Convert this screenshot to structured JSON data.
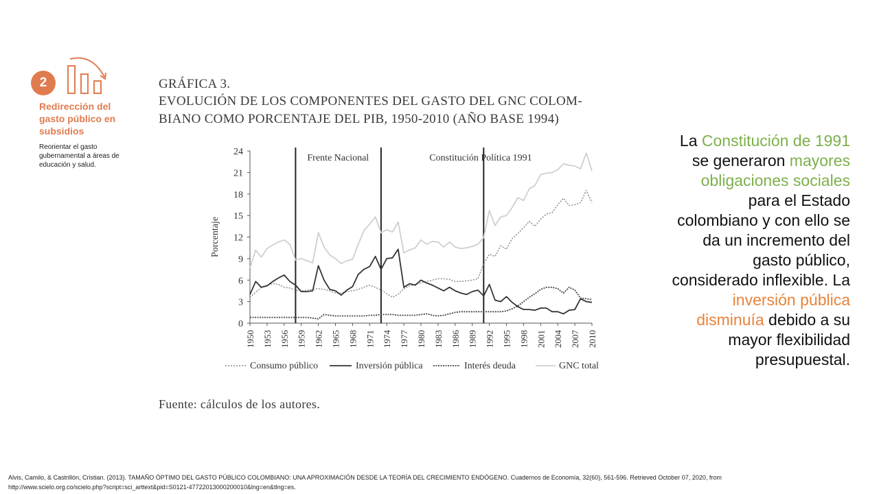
{
  "slide": {
    "badge_number": "2",
    "sidebar_title": "Redirección del gasto público en subsidios",
    "sidebar_desc": "Reorientar el gasto gubernamental a áreas de educación y salud."
  },
  "figure": {
    "label": "GRÁFICA 3.",
    "title_line1": "EVOLUCIÓN DE LOS COMPONENTES DEL GASTO DEL GNC COLOM-",
    "title_line2": "BIANO COMO PORCENTAJE DEL PIB, 1950-2010 (AÑO BASE 1994)",
    "source": "Fuente: cálculos de los autores."
  },
  "chart_data": {
    "type": "line",
    "ylabel": "Porcentaje",
    "xlabel": "",
    "ylim": [
      0,
      24
    ],
    "yticks": [
      "0",
      "3",
      "6",
      "9",
      "12",
      "15",
      "18",
      "21",
      "24"
    ],
    "xticks": [
      "1950",
      "1953",
      "1956",
      "1959",
      "1962",
      "1965",
      "1968",
      "1971",
      "1974",
      "1977",
      "1980",
      "1983",
      "1986",
      "1989",
      "1992",
      "1995",
      "1998",
      "2001",
      "2004",
      "2007",
      "2010"
    ],
    "xlim": [
      1950,
      2010
    ],
    "grid": false,
    "legend_position": "bottom",
    "annotations": [
      {
        "label": "Frente Nacional",
        "x": 1958
      },
      {
        "label": "Constitución Política 1991",
        "x": 1991
      }
    ],
    "vertical_lines": [
      1958,
      1973,
      1991
    ],
    "x": [
      1950,
      1951,
      1952,
      1953,
      1954,
      1955,
      1956,
      1957,
      1958,
      1959,
      1960,
      1961,
      1962,
      1963,
      1964,
      1965,
      1966,
      1967,
      1968,
      1969,
      1970,
      1971,
      1972,
      1973,
      1974,
      1975,
      1976,
      1977,
      1978,
      1979,
      1980,
      1981,
      1982,
      1983,
      1984,
      1985,
      1986,
      1987,
      1988,
      1989,
      1990,
      1991,
      1992,
      1993,
      1994,
      1995,
      1996,
      1997,
      1998,
      1999,
      2000,
      2001,
      2002,
      2003,
      2004,
      2005,
      2006,
      2007,
      2008,
      2009,
      2010
    ],
    "series": [
      {
        "name": "Consumo público",
        "values": [
          3.6,
          4.3,
          5.0,
          5.3,
          5.5,
          5.4,
          5.0,
          4.9,
          4.6,
          4.5,
          4.6,
          4.7,
          4.8,
          4.7,
          4.5,
          4.2,
          4.2,
          4.4,
          4.5,
          4.7,
          5.0,
          5.3,
          5.0,
          4.6,
          4.1,
          3.6,
          4.0,
          4.8,
          5.2,
          5.4,
          5.6,
          5.8,
          6.0,
          6.2,
          6.2,
          6.1,
          5.8,
          5.8,
          5.9,
          6.0,
          6.2,
          8.3,
          9.6,
          9.3,
          10.8,
          10.3,
          11.8,
          12.5,
          13.3,
          14.2,
          13.5,
          14.5,
          15.2,
          15.4,
          16.5,
          17.4,
          16.4,
          16.5,
          16.8,
          18.5,
          16.8
        ]
      },
      {
        "name": "Inversión pública",
        "values": [
          4.0,
          5.8,
          5.0,
          5.2,
          5.8,
          6.3,
          6.7,
          5.8,
          5.3,
          4.4,
          4.4,
          4.5,
          8.0,
          6.0,
          4.7,
          4.5,
          3.9,
          4.6,
          5.1,
          6.8,
          7.5,
          7.9,
          9.3,
          7.5,
          9.0,
          9.1,
          10.3,
          5.0,
          5.5,
          5.3,
          6.0,
          5.6,
          5.3,
          4.9,
          4.5,
          5.0,
          4.5,
          4.2,
          4.0,
          4.4,
          4.6,
          3.8,
          5.4,
          3.2,
          3.0,
          3.7,
          2.9,
          2.3,
          1.9,
          1.9,
          1.8,
          2.1,
          2.1,
          1.6,
          1.6,
          1.3,
          1.8,
          1.9,
          3.4,
          3.0,
          2.9
        ]
      },
      {
        "name": "Interés deuda",
        "values": [
          0.8,
          0.8,
          0.8,
          0.8,
          0.8,
          0.8,
          0.8,
          0.8,
          0.8,
          0.8,
          0.8,
          0.7,
          0.6,
          1.2,
          1.1,
          1.0,
          1.0,
          1.0,
          1.0,
          1.0,
          1.0,
          1.1,
          1.1,
          1.2,
          1.2,
          1.2,
          1.1,
          1.1,
          1.1,
          1.1,
          1.2,
          1.3,
          1.1,
          1.0,
          1.1,
          1.3,
          1.5,
          1.6,
          1.6,
          1.6,
          1.6,
          1.6,
          1.6,
          1.6,
          1.6,
          1.7,
          2.0,
          2.4,
          3.0,
          3.6,
          4.1,
          4.7,
          5.0,
          5.0,
          4.8,
          4.2,
          5.0,
          4.6,
          3.5,
          3.4,
          3.3
        ]
      },
      {
        "name": "GNC total",
        "values": [
          7.7,
          10.2,
          9.2,
          10.4,
          10.9,
          11.3,
          11.6,
          11.0,
          8.8,
          9.0,
          8.7,
          8.4,
          12.6,
          10.6,
          9.5,
          9.0,
          8.3,
          8.7,
          8.9,
          11.0,
          12.9,
          13.8,
          14.8,
          12.6,
          13.0,
          12.7,
          14.1,
          9.8,
          10.2,
          10.5,
          11.6,
          11.0,
          11.4,
          11.3,
          10.6,
          11.3,
          10.6,
          10.4,
          10.5,
          10.7,
          11.0,
          11.9,
          15.7,
          13.6,
          14.8,
          15.0,
          16.1,
          17.5,
          17.1,
          18.7,
          19.2,
          20.7,
          20.9,
          21.0,
          21.4,
          22.2,
          22.0,
          21.9,
          21.5,
          23.7,
          21.2
        ]
      }
    ],
    "colors": {
      "Consumo público": "#8a8a8a",
      "Inversión pública": "#3a3a3a",
      "Interés deuda": "#4a4a4a",
      "GNC total": "#c8c8c8"
    }
  },
  "right_text": {
    "p1": "La ",
    "constitucion": "Constitución de 1991",
    "p2": " se generaron ",
    "obligaciones": "mayores obligaciones sociales",
    "p3": " para el Estado colombiano y con ello se da un incremento del gasto público, considerado inflexible.  La ",
    "inversion": "inversión pública disminuía",
    "p4": " debido a su mayor flexibilidad presupuestal."
  },
  "citation": "Alvis, Camilo, & Castrillón, Cristian. (2013). TAMAÑO ÓPTIMO DEL GASTO PÚBLICO COLOMBIANO: UNA APROXIMACIÓN DESDE LA TEORÍA DEL CRECIMIENTO ENDÓGENO. Cuadernos de Economía, 32(60), 561-596. Retrieved October 07, 2020, from http://www.scielo.org.co/scielo.php?script=sci_arttext&pid=S0121-47722013000200010&lng=en&tlng=es.",
  "theme": {
    "accent_orange": "#E07B4F",
    "accent_green": "#7DB04B"
  }
}
